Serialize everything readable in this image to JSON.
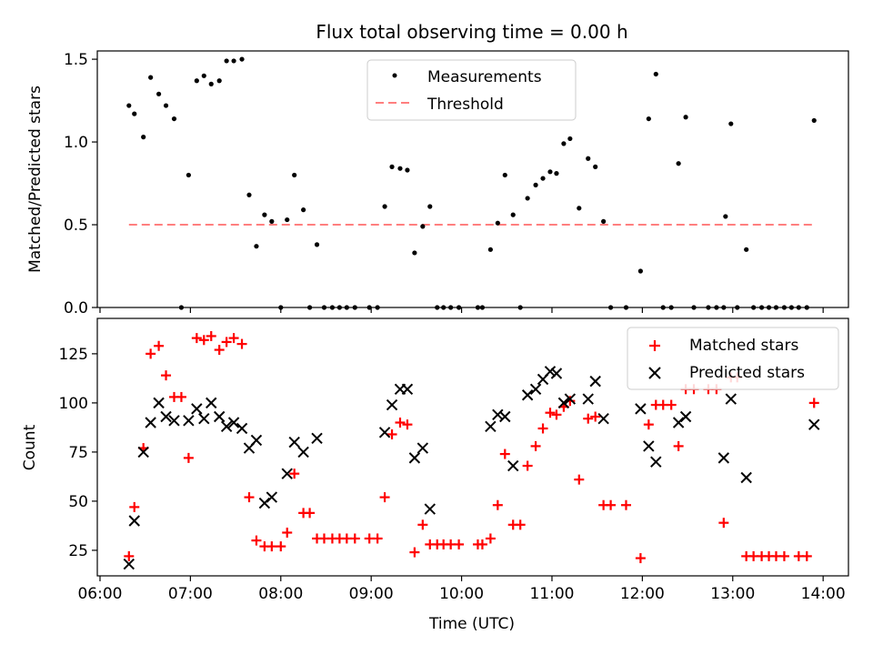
{
  "figure": {
    "title": "Flux total observing time = 0.00 h",
    "xlabel": "Time (UTC)",
    "x_ticks": [
      "06:00",
      "07:00",
      "08:00",
      "09:00",
      "10:00",
      "11:00",
      "12:00",
      "13:00",
      "14:00"
    ],
    "x_tick_hours": [
      6,
      7,
      8,
      9,
      10,
      11,
      12,
      13,
      14
    ],
    "xlim_hours": [
      5.97,
      14.28
    ]
  },
  "chart_data": [
    {
      "type": "scatter",
      "name": "top-panel",
      "ylabel": "Matched/Predicted stars",
      "ylim": [
        0,
        1.55
      ],
      "y_ticks": [
        0.0,
        0.5,
        1.0,
        1.5
      ],
      "y_tick_labels": [
        "0.0",
        "0.5",
        "1.0",
        "1.5"
      ],
      "legend": {
        "location": "upper center",
        "labels": [
          "Measurements",
          "Threshold"
        ]
      },
      "colors": {
        "measurements": "#000000",
        "threshold": "#ff7f7f"
      },
      "series": [
        {
          "name": "Measurements",
          "marker": "dot",
          "points": [
            [
              6.32,
              1.22
            ],
            [
              6.38,
              1.17
            ],
            [
              6.48,
              1.03
            ],
            [
              6.56,
              1.39
            ],
            [
              6.65,
              1.29
            ],
            [
              6.73,
              1.22
            ],
            [
              6.82,
              1.14
            ],
            [
              6.9,
              0.0
            ],
            [
              6.98,
              0.8
            ],
            [
              7.07,
              1.37
            ],
            [
              7.15,
              1.4
            ],
            [
              7.23,
              1.35
            ],
            [
              7.32,
              1.37
            ],
            [
              7.4,
              1.49
            ],
            [
              7.48,
              1.49
            ],
            [
              7.57,
              1.5
            ],
            [
              7.65,
              0.68
            ],
            [
              7.73,
              0.37
            ],
            [
              7.82,
              0.56
            ],
            [
              7.9,
              0.52
            ],
            [
              8.0,
              0.0
            ],
            [
              8.07,
              0.53
            ],
            [
              8.15,
              0.8
            ],
            [
              8.25,
              0.59
            ],
            [
              8.32,
              0.0
            ],
            [
              8.4,
              0.38
            ],
            [
              8.48,
              0.0
            ],
            [
              8.57,
              0.0
            ],
            [
              8.65,
              0.0
            ],
            [
              8.73,
              0.0
            ],
            [
              8.82,
              0.0
            ],
            [
              8.98,
              0.0
            ],
            [
              9.07,
              0.0
            ],
            [
              9.15,
              0.61
            ],
            [
              9.23,
              0.85
            ],
            [
              9.32,
              0.84
            ],
            [
              9.4,
              0.83
            ],
            [
              9.48,
              0.33
            ],
            [
              9.57,
              0.49
            ],
            [
              9.65,
              0.61
            ],
            [
              9.73,
              0.0
            ],
            [
              9.8,
              0.0
            ],
            [
              9.88,
              0.0
            ],
            [
              9.97,
              0.0
            ],
            [
              10.18,
              0.0
            ],
            [
              10.23,
              0.0
            ],
            [
              10.32,
              0.35
            ],
            [
              10.4,
              0.51
            ],
            [
              10.48,
              0.8
            ],
            [
              10.57,
              0.56
            ],
            [
              10.65,
              0.0
            ],
            [
              10.73,
              0.66
            ],
            [
              10.82,
              0.74
            ],
            [
              10.9,
              0.78
            ],
            [
              10.98,
              0.82
            ],
            [
              11.05,
              0.81
            ],
            [
              11.13,
              0.99
            ],
            [
              11.2,
              1.02
            ],
            [
              11.3,
              0.6
            ],
            [
              11.4,
              0.9
            ],
            [
              11.48,
              0.85
            ],
            [
              11.57,
              0.52
            ],
            [
              11.65,
              0.0
            ],
            [
              11.82,
              0.0
            ],
            [
              11.98,
              0.22
            ],
            [
              12.07,
              1.14
            ],
            [
              12.15,
              1.41
            ],
            [
              12.23,
              0.0
            ],
            [
              12.32,
              0.0
            ],
            [
              12.4,
              0.87
            ],
            [
              12.48,
              1.15
            ],
            [
              12.57,
              0.0
            ],
            [
              12.73,
              0.0
            ],
            [
              12.82,
              0.0
            ],
            [
              12.9,
              0.0
            ],
            [
              12.92,
              0.55
            ],
            [
              12.98,
              1.11
            ],
            [
              13.05,
              0.0
            ],
            [
              13.15,
              0.35
            ],
            [
              13.23,
              0.0
            ],
            [
              13.32,
              0.0
            ],
            [
              13.4,
              0.0
            ],
            [
              13.48,
              0.0
            ],
            [
              13.57,
              0.0
            ],
            [
              13.65,
              0.0
            ],
            [
              13.73,
              0.0
            ],
            [
              13.82,
              0.0
            ],
            [
              13.9,
              1.13
            ]
          ]
        },
        {
          "name": "Threshold",
          "marker": "dashed-line",
          "points": [
            [
              6.32,
              0.5
            ],
            [
              13.9,
              0.5
            ]
          ]
        }
      ]
    },
    {
      "type": "scatter",
      "name": "bottom-panel",
      "ylabel": "Count",
      "ylim": [
        12,
        143
      ],
      "y_ticks": [
        25,
        50,
        75,
        100,
        125
      ],
      "y_tick_labels": [
        "25",
        "50",
        "75",
        "100",
        "125"
      ],
      "legend": {
        "location": "upper right",
        "labels": [
          "Matched stars",
          "Predicted stars"
        ]
      },
      "colors": {
        "matched": "#ff0000",
        "predicted": "#000000"
      },
      "series": [
        {
          "name": "Matched stars",
          "marker": "plus",
          "points": [
            [
              6.32,
              22
            ],
            [
              6.38,
              47
            ],
            [
              6.48,
              77
            ],
            [
              6.56,
              125
            ],
            [
              6.65,
              129
            ],
            [
              6.73,
              114
            ],
            [
              6.82,
              103
            ],
            [
              6.9,
              103
            ],
            [
              6.98,
              72
            ],
            [
              7.07,
              133
            ],
            [
              7.15,
              132
            ],
            [
              7.23,
              134
            ],
            [
              7.32,
              127
            ],
            [
              7.4,
              131
            ],
            [
              7.48,
              133
            ],
            [
              7.57,
              130
            ],
            [
              7.65,
              52
            ],
            [
              7.73,
              30
            ],
            [
              7.82,
              27
            ],
            [
              7.9,
              27
            ],
            [
              8.0,
              27
            ],
            [
              8.07,
              34
            ],
            [
              8.15,
              64
            ],
            [
              8.25,
              44
            ],
            [
              8.32,
              44
            ],
            [
              8.4,
              31
            ],
            [
              8.48,
              31
            ],
            [
              8.57,
              31
            ],
            [
              8.65,
              31
            ],
            [
              8.73,
              31
            ],
            [
              8.82,
              31
            ],
            [
              8.98,
              31
            ],
            [
              9.07,
              31
            ],
            [
              9.15,
              52
            ],
            [
              9.23,
              84
            ],
            [
              9.32,
              90
            ],
            [
              9.4,
              89
            ],
            [
              9.48,
              24
            ],
            [
              9.57,
              38
            ],
            [
              9.65,
              28
            ],
            [
              9.73,
              28
            ],
            [
              9.8,
              28
            ],
            [
              9.88,
              28
            ],
            [
              9.97,
              28
            ],
            [
              10.18,
              28
            ],
            [
              10.23,
              28
            ],
            [
              10.32,
              31
            ],
            [
              10.4,
              48
            ],
            [
              10.48,
              74
            ],
            [
              10.57,
              38
            ],
            [
              10.65,
              38
            ],
            [
              10.73,
              68
            ],
            [
              10.82,
              78
            ],
            [
              10.9,
              87
            ],
            [
              10.98,
              95
            ],
            [
              11.05,
              94
            ],
            [
              11.13,
              98
            ],
            [
              11.2,
              101
            ],
            [
              11.3,
              61
            ],
            [
              11.4,
              92
            ],
            [
              11.48,
              93
            ],
            [
              11.57,
              48
            ],
            [
              11.65,
              48
            ],
            [
              11.82,
              48
            ],
            [
              11.98,
              21
            ],
            [
              12.07,
              89
            ],
            [
              12.15,
              99
            ],
            [
              12.23,
              99
            ],
            [
              12.32,
              99
            ],
            [
              12.4,
              78
            ],
            [
              12.48,
              107
            ],
            [
              12.57,
              107
            ],
            [
              12.73,
              107
            ],
            [
              12.82,
              107
            ],
            [
              12.9,
              39
            ],
            [
              12.98,
              113
            ],
            [
              13.05,
              113
            ],
            [
              13.15,
              22
            ],
            [
              13.23,
              22
            ],
            [
              13.32,
              22
            ],
            [
              13.4,
              22
            ],
            [
              13.48,
              22
            ],
            [
              13.57,
              22
            ],
            [
              13.73,
              22
            ],
            [
              13.82,
              22
            ],
            [
              13.9,
              100
            ]
          ]
        },
        {
          "name": "Predicted stars",
          "marker": "x",
          "points": [
            [
              6.32,
              18
            ],
            [
              6.38,
              40
            ],
            [
              6.48,
              75
            ],
            [
              6.56,
              90
            ],
            [
              6.65,
              100
            ],
            [
              6.73,
              93
            ],
            [
              6.82,
              91
            ],
            [
              6.98,
              91
            ],
            [
              7.07,
              97
            ],
            [
              7.15,
              92
            ],
            [
              7.23,
              100
            ],
            [
              7.32,
              93
            ],
            [
              7.4,
              88
            ],
            [
              7.48,
              90
            ],
            [
              7.57,
              87
            ],
            [
              7.65,
              77
            ],
            [
              7.73,
              81
            ],
            [
              7.82,
              49
            ],
            [
              7.9,
              52
            ],
            [
              8.07,
              64
            ],
            [
              8.15,
              80
            ],
            [
              8.25,
              75
            ],
            [
              8.4,
              82
            ],
            [
              9.15,
              85
            ],
            [
              9.23,
              99
            ],
            [
              9.32,
              107
            ],
            [
              9.4,
              107
            ],
            [
              9.48,
              72
            ],
            [
              9.57,
              77
            ],
            [
              9.65,
              46
            ],
            [
              10.32,
              88
            ],
            [
              10.4,
              94
            ],
            [
              10.48,
              93
            ],
            [
              10.57,
              68
            ],
            [
              10.73,
              104
            ],
            [
              10.82,
              107
            ],
            [
              10.9,
              112
            ],
            [
              10.98,
              116
            ],
            [
              11.05,
              115
            ],
            [
              11.13,
              100
            ],
            [
              11.2,
              102
            ],
            [
              11.4,
              102
            ],
            [
              11.48,
              111
            ],
            [
              11.57,
              92
            ],
            [
              11.98,
              97
            ],
            [
              12.07,
              78
            ],
            [
              12.15,
              70
            ],
            [
              12.4,
              90
            ],
            [
              12.48,
              93
            ],
            [
              12.9,
              72
            ],
            [
              12.98,
              102
            ],
            [
              13.15,
              62
            ],
            [
              13.9,
              89
            ]
          ]
        }
      ]
    }
  ]
}
